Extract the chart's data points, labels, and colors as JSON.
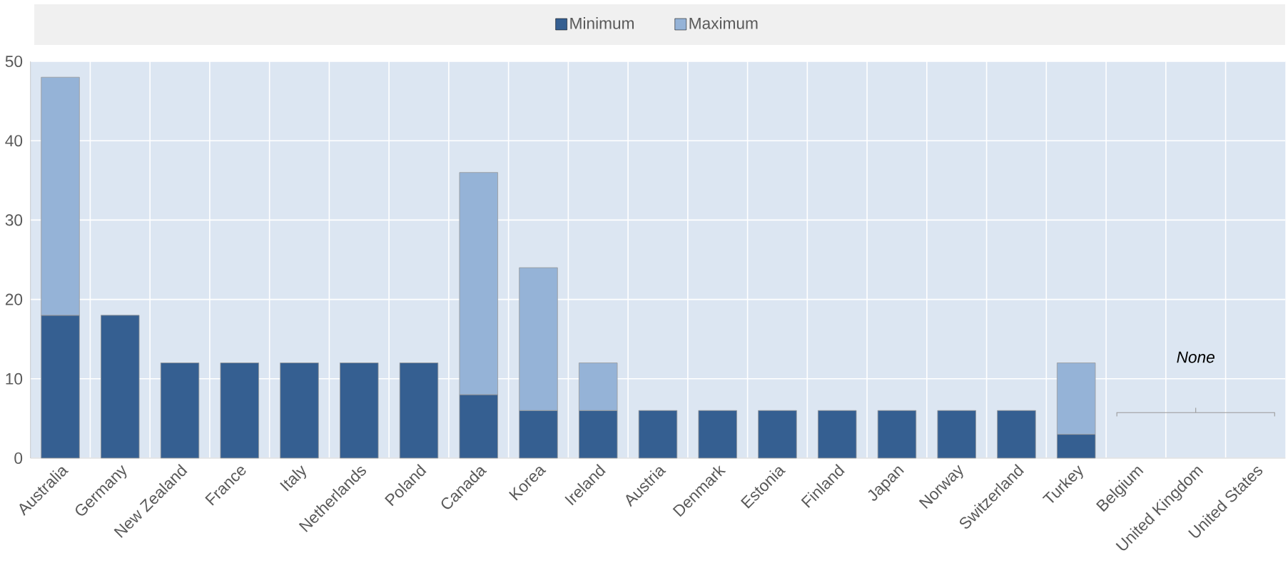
{
  "chart_data": {
    "type": "bar",
    "stacked": true,
    "categories": [
      "Australia",
      "Germany",
      "New Zealand",
      "France",
      "Italy",
      "Netherlands",
      "Poland",
      "Canada",
      "Korea",
      "Ireland",
      "Austria",
      "Denmark",
      "Estonia",
      "Finland",
      "Japan",
      "Norway",
      "Switzerland",
      "Turkey",
      "Belgium",
      "United Kingdom",
      "United States"
    ],
    "series": [
      {
        "name": "Minimum",
        "color": "#355f91",
        "values": [
          18,
          18,
          12,
          12,
          12,
          12,
          12,
          8,
          6,
          6,
          6,
          6,
          6,
          6,
          6,
          6,
          6,
          3,
          null,
          null,
          null
        ]
      },
      {
        "name": "Maximum",
        "color": "#95b3d7",
        "values": [
          30,
          null,
          null,
          null,
          null,
          null,
          null,
          28,
          18,
          6,
          null,
          null,
          null,
          null,
          null,
          null,
          null,
          9,
          null,
          null,
          null
        ]
      }
    ],
    "ylim": [
      0,
      50
    ],
    "yticks": [
      0,
      10,
      20,
      30,
      40,
      50
    ],
    "grid": true,
    "legend": "top",
    "annotations": [
      "None"
    ]
  }
}
